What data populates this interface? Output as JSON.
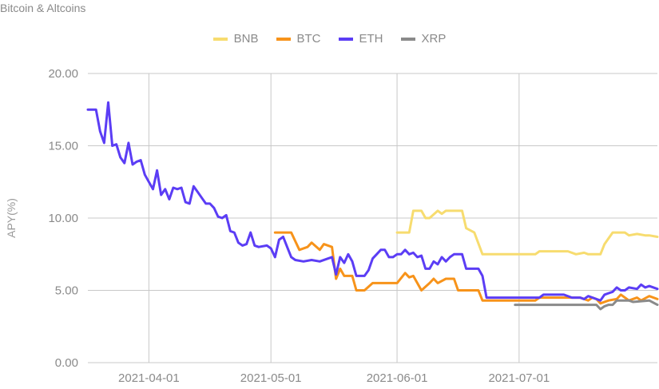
{
  "chart_data": {
    "type": "line",
    "title": "Bitcoin & Altcoins",
    "xlabel": "",
    "ylabel": "APY(%)",
    "ylim": [
      0,
      20
    ],
    "xlim": [
      "2021-03-17",
      "2021-08-04"
    ],
    "yticks": [
      "0.00",
      "5.00",
      "10.00",
      "15.00",
      "20.00"
    ],
    "xticks": [
      "2021-04-01",
      "2021-05-01",
      "2021-06-01",
      "2021-07-01"
    ],
    "grid": true,
    "legend_position": "top",
    "series": [
      {
        "name": "BNB",
        "color": "#f7dc6f",
        "points": [
          [
            "2021-06-01",
            9.0
          ],
          [
            "2021-06-04",
            9.0
          ],
          [
            "2021-06-05",
            10.5
          ],
          [
            "2021-06-07",
            10.5
          ],
          [
            "2021-06-08",
            10.0
          ],
          [
            "2021-06-09",
            10.0
          ],
          [
            "2021-06-11",
            10.5
          ],
          [
            "2021-06-12",
            10.3
          ],
          [
            "2021-06-13",
            10.5
          ],
          [
            "2021-06-17",
            10.5
          ],
          [
            "2021-06-18",
            9.3
          ],
          [
            "2021-06-20",
            9.0
          ],
          [
            "2021-06-22",
            7.5
          ],
          [
            "2021-07-05",
            7.5
          ],
          [
            "2021-07-06",
            7.7
          ],
          [
            "2021-07-13",
            7.7
          ],
          [
            "2021-07-15",
            7.5
          ],
          [
            "2021-07-17",
            7.6
          ],
          [
            "2021-07-18",
            7.5
          ],
          [
            "2021-07-21",
            7.5
          ],
          [
            "2021-07-22",
            8.2
          ],
          [
            "2021-07-24",
            9.0
          ],
          [
            "2021-07-27",
            9.0
          ],
          [
            "2021-07-28",
            8.8
          ],
          [
            "2021-07-30",
            8.9
          ],
          [
            "2021-08-01",
            8.8
          ],
          [
            "2021-08-02",
            8.8
          ],
          [
            "2021-08-04",
            8.7
          ]
        ]
      },
      {
        "name": "BTC",
        "color": "#f7931a",
        "points": [
          [
            "2021-05-02",
            9.0
          ],
          [
            "2021-05-06",
            9.0
          ],
          [
            "2021-05-07",
            8.4
          ],
          [
            "2021-05-08",
            7.8
          ],
          [
            "2021-05-10",
            8.0
          ],
          [
            "2021-05-11",
            8.3
          ],
          [
            "2021-05-13",
            7.8
          ],
          [
            "2021-05-14",
            8.2
          ],
          [
            "2021-05-16",
            8.0
          ],
          [
            "2021-05-17",
            5.8
          ],
          [
            "2021-05-18",
            6.5
          ],
          [
            "2021-05-19",
            6.0
          ],
          [
            "2021-05-21",
            6.0
          ],
          [
            "2021-05-22",
            5.0
          ],
          [
            "2021-05-24",
            5.0
          ],
          [
            "2021-05-26",
            5.5
          ],
          [
            "2021-06-01",
            5.5
          ],
          [
            "2021-06-03",
            6.2
          ],
          [
            "2021-06-04",
            5.9
          ],
          [
            "2021-06-05",
            6.0
          ],
          [
            "2021-06-07",
            5.0
          ],
          [
            "2021-06-09",
            5.5
          ],
          [
            "2021-06-10",
            5.8
          ],
          [
            "2021-06-11",
            5.5
          ],
          [
            "2021-06-13",
            5.8
          ],
          [
            "2021-06-15",
            5.8
          ],
          [
            "2021-06-16",
            5.0
          ],
          [
            "2021-06-21",
            5.0
          ],
          [
            "2021-06-22",
            4.3
          ],
          [
            "2021-07-05",
            4.3
          ],
          [
            "2021-07-06",
            4.5
          ],
          [
            "2021-07-16",
            4.5
          ],
          [
            "2021-07-18",
            4.3
          ],
          [
            "2021-07-19",
            4.5
          ],
          [
            "2021-07-20",
            4.4
          ],
          [
            "2021-07-21",
            4.1
          ],
          [
            "2021-07-23",
            4.3
          ],
          [
            "2021-07-25",
            4.4
          ],
          [
            "2021-07-26",
            4.7
          ],
          [
            "2021-07-28",
            4.3
          ],
          [
            "2021-07-30",
            4.5
          ],
          [
            "2021-07-31",
            4.3
          ],
          [
            "2021-08-02",
            4.6
          ],
          [
            "2021-08-04",
            4.4
          ]
        ]
      },
      {
        "name": "ETH",
        "color": "#5b3df5",
        "points": [
          [
            "2021-03-17",
            17.5
          ],
          [
            "2021-03-19",
            17.5
          ],
          [
            "2021-03-20",
            16.0
          ],
          [
            "2021-03-21",
            15.2
          ],
          [
            "2021-03-22",
            18.0
          ],
          [
            "2021-03-23",
            15.0
          ],
          [
            "2021-03-24",
            15.1
          ],
          [
            "2021-03-25",
            14.2
          ],
          [
            "2021-03-26",
            13.8
          ],
          [
            "2021-03-27",
            15.2
          ],
          [
            "2021-03-28",
            13.7
          ],
          [
            "2021-03-29",
            13.9
          ],
          [
            "2021-03-30",
            14.0
          ],
          [
            "2021-03-31",
            13.0
          ],
          [
            "2021-04-01",
            12.5
          ],
          [
            "2021-04-02",
            12.0
          ],
          [
            "2021-04-03",
            13.3
          ],
          [
            "2021-04-04",
            11.6
          ],
          [
            "2021-04-05",
            12.0
          ],
          [
            "2021-04-06",
            11.3
          ],
          [
            "2021-04-07",
            12.1
          ],
          [
            "2021-04-08",
            12.0
          ],
          [
            "2021-04-09",
            12.1
          ],
          [
            "2021-04-10",
            11.1
          ],
          [
            "2021-04-11",
            11.0
          ],
          [
            "2021-04-12",
            12.2
          ],
          [
            "2021-04-13",
            11.8
          ],
          [
            "2021-04-14",
            11.4
          ],
          [
            "2021-04-15",
            11.0
          ],
          [
            "2021-04-16",
            11.0
          ],
          [
            "2021-04-17",
            10.7
          ],
          [
            "2021-04-18",
            10.1
          ],
          [
            "2021-04-19",
            10.0
          ],
          [
            "2021-04-20",
            10.2
          ],
          [
            "2021-04-21",
            9.1
          ],
          [
            "2021-04-22",
            9.0
          ],
          [
            "2021-04-23",
            8.3
          ],
          [
            "2021-04-24",
            8.1
          ],
          [
            "2021-04-25",
            8.2
          ],
          [
            "2021-04-26",
            9.0
          ],
          [
            "2021-04-27",
            8.1
          ],
          [
            "2021-04-28",
            8.0
          ],
          [
            "2021-04-30",
            8.1
          ],
          [
            "2021-05-01",
            7.9
          ],
          [
            "2021-05-02",
            7.3
          ],
          [
            "2021-05-03",
            8.5
          ],
          [
            "2021-05-04",
            8.7
          ],
          [
            "2021-05-05",
            8.0
          ],
          [
            "2021-05-06",
            7.3
          ],
          [
            "2021-05-07",
            7.1
          ],
          [
            "2021-05-09",
            7.0
          ],
          [
            "2021-05-11",
            7.1
          ],
          [
            "2021-05-13",
            7.0
          ],
          [
            "2021-05-15",
            7.2
          ],
          [
            "2021-05-16",
            7.3
          ],
          [
            "2021-05-17",
            6.1
          ],
          [
            "2021-05-18",
            7.3
          ],
          [
            "2021-05-19",
            6.9
          ],
          [
            "2021-05-20",
            7.5
          ],
          [
            "2021-05-21",
            7.0
          ],
          [
            "2021-05-22",
            6.0
          ],
          [
            "2021-05-24",
            6.0
          ],
          [
            "2021-05-25",
            6.4
          ],
          [
            "2021-05-26",
            7.2
          ],
          [
            "2021-05-27",
            7.5
          ],
          [
            "2021-05-28",
            7.8
          ],
          [
            "2021-05-29",
            7.8
          ],
          [
            "2021-05-30",
            7.3
          ],
          [
            "2021-05-31",
            7.3
          ],
          [
            "2021-06-01",
            7.5
          ],
          [
            "2021-06-02",
            7.5
          ],
          [
            "2021-06-03",
            7.8
          ],
          [
            "2021-06-04",
            7.5
          ],
          [
            "2021-06-05",
            7.6
          ],
          [
            "2021-06-06",
            7.3
          ],
          [
            "2021-06-07",
            7.4
          ],
          [
            "2021-06-08",
            6.5
          ],
          [
            "2021-06-09",
            6.5
          ],
          [
            "2021-06-10",
            7.0
          ],
          [
            "2021-06-11",
            6.8
          ],
          [
            "2021-06-12",
            7.3
          ],
          [
            "2021-06-13",
            7.0
          ],
          [
            "2021-06-14",
            7.3
          ],
          [
            "2021-06-15",
            7.5
          ],
          [
            "2021-06-17",
            7.5
          ],
          [
            "2021-06-18",
            6.5
          ],
          [
            "2021-06-21",
            6.5
          ],
          [
            "2021-06-22",
            6.0
          ],
          [
            "2021-06-23",
            4.5
          ],
          [
            "2021-07-06",
            4.5
          ],
          [
            "2021-07-07",
            4.7
          ],
          [
            "2021-07-12",
            4.7
          ],
          [
            "2021-07-14",
            4.5
          ],
          [
            "2021-07-16",
            4.5
          ],
          [
            "2021-07-17",
            4.4
          ],
          [
            "2021-07-18",
            4.6
          ],
          [
            "2021-07-20",
            4.4
          ],
          [
            "2021-07-21",
            4.3
          ],
          [
            "2021-07-22",
            4.7
          ],
          [
            "2021-07-24",
            4.9
          ],
          [
            "2021-07-25",
            5.2
          ],
          [
            "2021-07-26",
            5.0
          ],
          [
            "2021-07-27",
            5.0
          ],
          [
            "2021-07-28",
            5.2
          ],
          [
            "2021-07-30",
            5.1
          ],
          [
            "2021-07-31",
            5.4
          ],
          [
            "2021-08-01",
            5.2
          ],
          [
            "2021-08-02",
            5.3
          ],
          [
            "2021-08-04",
            5.1
          ]
        ]
      },
      {
        "name": "XRP",
        "color": "#8a8a8a",
        "points": [
          [
            "2021-06-30",
            4.0
          ],
          [
            "2021-07-20",
            4.0
          ],
          [
            "2021-07-21",
            3.7
          ],
          [
            "2021-07-22",
            3.9
          ],
          [
            "2021-07-23",
            4.0
          ],
          [
            "2021-07-24",
            4.0
          ],
          [
            "2021-07-25",
            4.3
          ],
          [
            "2021-07-28",
            4.3
          ],
          [
            "2021-07-29",
            4.2
          ],
          [
            "2021-08-02",
            4.3
          ],
          [
            "2021-08-04",
            4.0
          ]
        ]
      }
    ]
  }
}
